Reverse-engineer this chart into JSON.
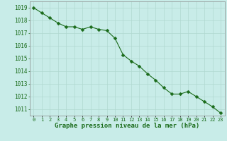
{
  "x": [
    0,
    1,
    2,
    3,
    4,
    5,
    6,
    7,
    8,
    9,
    10,
    11,
    12,
    13,
    14,
    15,
    16,
    17,
    18,
    19,
    20,
    21,
    22,
    23
  ],
  "y": [
    1019.0,
    1018.6,
    1018.2,
    1017.8,
    1017.5,
    1017.5,
    1017.3,
    1017.5,
    1017.3,
    1017.2,
    1016.6,
    1015.3,
    1014.8,
    1014.4,
    1013.8,
    1013.3,
    1012.7,
    1012.2,
    1012.2,
    1012.4,
    1012.0,
    1011.6,
    1011.2,
    1010.7
  ],
  "line_color": "#1a6b1a",
  "marker": "D",
  "marker_size": 2.5,
  "bg_color": "#c8ece8",
  "grid_color": "#b0d8d0",
  "xlabel": "Graphe pression niveau de la mer (hPa)",
  "xlabel_color": "#1a6b1a",
  "tick_label_color": "#1a6b1a",
  "ylim_min": 1010.5,
  "ylim_max": 1019.5,
  "xtick_labels": [
    "0",
    "1",
    "2",
    "3",
    "4",
    "5",
    "6",
    "7",
    "8",
    "9",
    "10",
    "11",
    "12",
    "13",
    "14",
    "15",
    "16",
    "17",
    "18",
    "19",
    "20",
    "21",
    "22",
    "23"
  ]
}
